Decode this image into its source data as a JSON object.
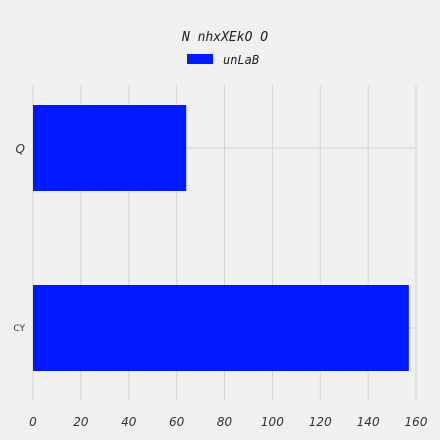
{
  "chart_data": {
    "type": "bar",
    "orientation": "horizontal",
    "title": "N nhxXEkO O",
    "categories": [
      "Q",
      "CY"
    ],
    "series": [
      {
        "name": "unLaB",
        "values": [
          64,
          157
        ],
        "color": "#0019ff"
      }
    ],
    "xlim": [
      0,
      160
    ],
    "xticks": [
      0,
      20,
      40,
      60,
      80,
      100,
      120,
      140,
      160
    ],
    "grid": true,
    "legend_position": "top-center",
    "background": "#f0f0f0"
  }
}
